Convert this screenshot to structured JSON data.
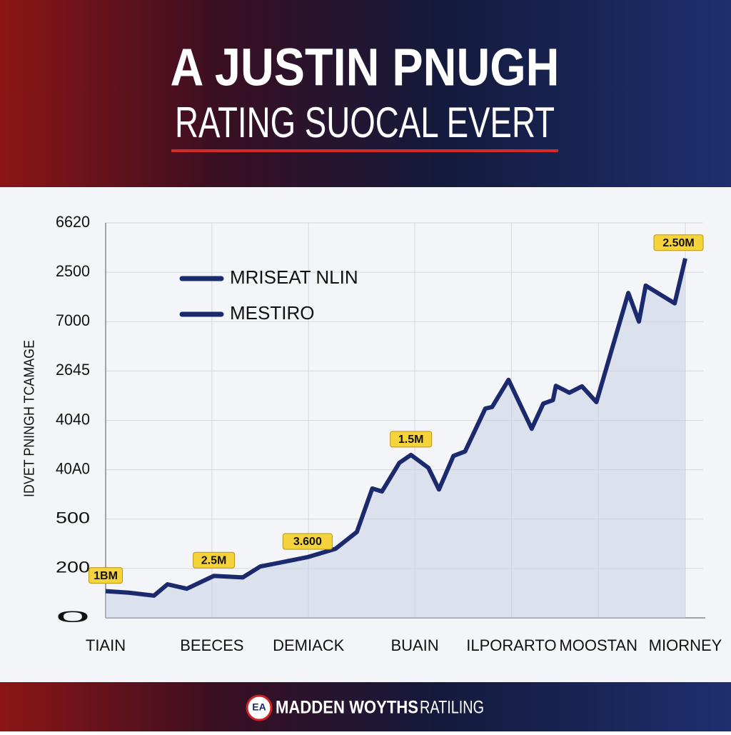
{
  "chart_data": {
    "type": "line",
    "title": "A JUSTIN PNUGH",
    "subtitle": "RATING SUOCAL EVERT",
    "y_label": "IDVET PNINGH TCAMAGE",
    "legend": [
      "MRISEAT NLIN",
      "MESTIRO"
    ],
    "x": [
      0,
      0.24,
      0.5,
      0.64,
      0.84,
      1.12,
      1.42,
      1.6,
      1.86,
      2.09,
      2.38,
      2.6,
      2.76,
      2.86,
      3.04,
      3.16,
      3.34,
      3.45,
      3.6,
      3.72,
      3.93,
      4.0,
      4.17,
      4.41,
      4.53,
      4.63,
      4.66,
      4.8,
      4.93,
      5.08,
      5.41,
      5.52,
      5.59,
      5.89,
      6
    ],
    "series": [
      {
        "color": "#1a2a6c",
        "values": [
          0.54,
          0.51,
          0.45,
          0.68,
          0.59,
          0.85,
          0.82,
          1.04,
          1.14,
          1.23,
          1.4,
          1.74,
          2.62,
          2.56,
          3.14,
          3.3,
          3.04,
          2.6,
          3.28,
          3.37,
          4.24,
          4.27,
          4.82,
          3.83,
          4.34,
          4.41,
          4.7,
          4.56,
          4.69,
          4.37,
          6.58,
          6.0,
          6.73,
          6.37,
          7.28
        ]
      }
    ],
    "annotations": [
      {
        "text": "1BM",
        "x": 0,
        "y": 0.54
      },
      {
        "text": "2.5M",
        "x": 1.12,
        "y": 0.85
      },
      {
        "text": "3.600",
        "x": 2.09,
        "y": 1.23
      },
      {
        "text": "1.5M",
        "x": 3.16,
        "y": 3.3
      },
      {
        "text": "2.50M",
        "x": 6,
        "y": 7.28
      }
    ],
    "xlim": [
      0,
      6
    ],
    "xticks": [
      {
        "value": 0,
        "label": "TIAIN"
      },
      {
        "value": 1.1,
        "label": "BEECES"
      },
      {
        "value": 2.1,
        "label": "DEMIACK"
      },
      {
        "value": 3.2,
        "label": "BUAIN"
      },
      {
        "value": 4.2,
        "label": "ILPORARTO"
      },
      {
        "value": 5.1,
        "label": "MOOSTAN"
      },
      {
        "value": 6,
        "label": "MIORNEY"
      }
    ],
    "ylim": [
      0,
      8
    ],
    "yticks": [
      0,
      {
        "value": 1,
        "label": "200"
      },
      {
        "value": 2,
        "label": "500"
      },
      {
        "value": 3,
        "label": "40A0"
      },
      {
        "value": 4,
        "label": "4040"
      },
      {
        "value": 5,
        "label": "2645"
      },
      {
        "value": 6,
        "label": "7000"
      },
      {
        "value": 7,
        "label": "2500"
      },
      {
        "value": 8,
        "label": "6620"
      }
    ],
    "grid": true
  },
  "footer": {
    "logo": "EA",
    "brand": "MADDEN WOYTHS",
    "text": "RATILING"
  }
}
